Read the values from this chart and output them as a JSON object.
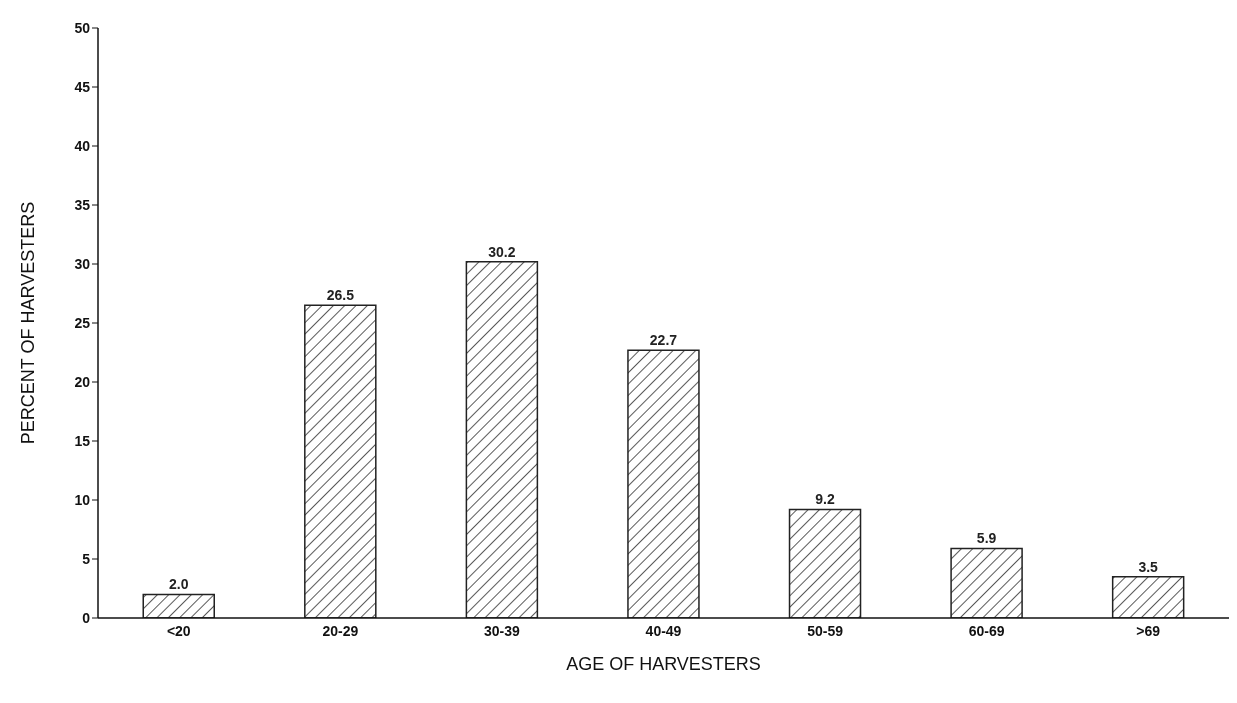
{
  "chart_data": {
    "type": "bar",
    "xlabel": "AGE OF HARVESTERS",
    "ylabel": "PERCENT OF HARVESTERS",
    "categories": [
      "<20",
      "20-29",
      "30-39",
      "40-49",
      "50-59",
      "60-69",
      ">69"
    ],
    "values": [
      2.0,
      26.5,
      30.2,
      22.7,
      9.2,
      5.9,
      3.5
    ],
    "color": "#222222",
    "ylim": [
      0,
      50
    ],
    "yticks": [
      0,
      5,
      10,
      15,
      20,
      25,
      30,
      35,
      40,
      45,
      50
    ],
    "value_labels": [
      "2.0",
      "26.5",
      "30.2",
      "22.7",
      "9.2",
      "5.9",
      "3.5"
    ],
    "grid": false,
    "legend": false
  }
}
